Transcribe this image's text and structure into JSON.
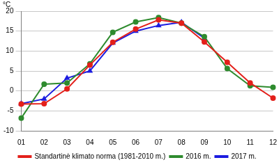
{
  "chart_data": {
    "type": "line",
    "y_label": "°C",
    "categories": [
      "01",
      "02",
      "03",
      "04",
      "05",
      "06",
      "07",
      "08",
      "09",
      "10",
      "11",
      "12"
    ],
    "series": [
      {
        "name": "Standartinė klimato norma (1981-2010 m.)",
        "color": "#e3201b",
        "marker": "circle",
        "values": [
          -3.3,
          -3.2,
          0.5,
          6.5,
          12.2,
          15.5,
          17.8,
          17.0,
          12.3,
          7.2,
          2.0,
          -1.8
        ]
      },
      {
        "name": "2016 m.",
        "color": "#2e8b2e",
        "marker": "circle",
        "values": [
          -6.8,
          1.7,
          2.0,
          6.8,
          14.7,
          17.3,
          18.4,
          17.0,
          13.6,
          5.6,
          1.3,
          0.9
        ]
      },
      {
        "name": "2017 m.",
        "color": "#1c1ce0",
        "marker": "triangle",
        "values": [
          -3.2,
          -2.0,
          3.2,
          5.0,
          12.0,
          15.0,
          16.4,
          17.2,
          13.2,
          null,
          null,
          null
        ]
      }
    ],
    "ylim": [
      -10,
      20
    ],
    "yticks": [
      -10,
      -5,
      0,
      5,
      10,
      15,
      20
    ],
    "grid": "y",
    "legend": "bottom"
  }
}
